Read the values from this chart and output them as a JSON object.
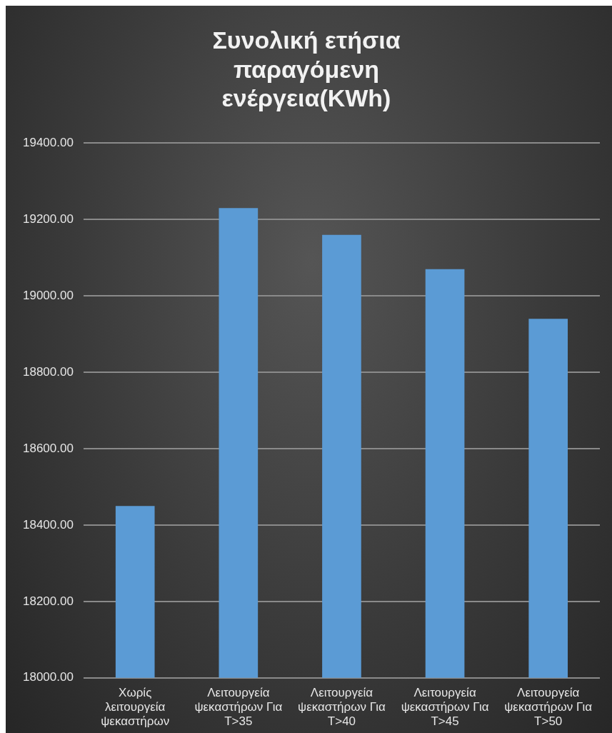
{
  "chart_data": {
    "type": "bar",
    "title": "Συνολική ετήσια παραγόμενη ενέργεια(KWh)",
    "categories": [
      "Χωρίς λειτουργεία ψεκαστήρων",
      "Λειτουργεία ψεκαστήρων Για T>35",
      "Λειτουργεία ψεκαστήρων Για T>40",
      "Λειτουργεία ψεκαστήρων Για T>45",
      "Λειτουργεία ψεκαστήρων Για T>50"
    ],
    "values": [
      18450,
      19230,
      19160,
      19070,
      18940
    ],
    "color": "#5b9bd5",
    "ylim": [
      18000,
      19400
    ],
    "yticks": [
      {
        "value": 18000,
        "label": "18000.00"
      },
      {
        "value": 18200,
        "label": "18200.00"
      },
      {
        "value": 18400,
        "label": "18400.00"
      },
      {
        "value": 18600,
        "label": "18600.00"
      },
      {
        "value": 18800,
        "label": "18800.00"
      },
      {
        "value": 19000,
        "label": "19000.00"
      },
      {
        "value": 19200,
        "label": "19200.00"
      },
      {
        "value": 19400,
        "label": "19400.00"
      }
    ],
    "grid": "y",
    "legend": false
  }
}
